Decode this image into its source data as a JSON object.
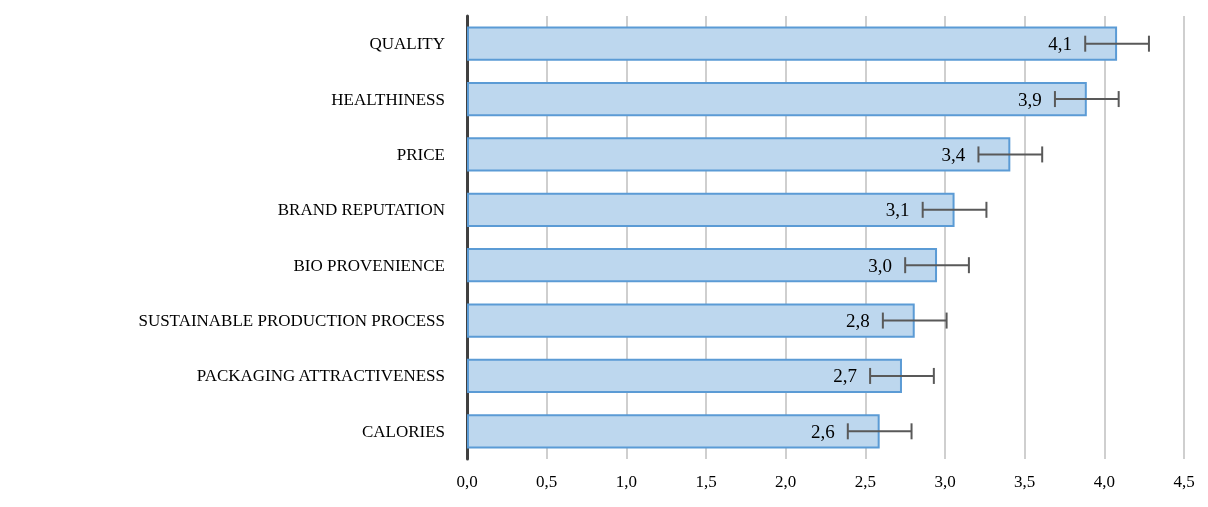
{
  "chart_data": {
    "type": "bar",
    "orientation": "horizontal",
    "categories": [
      "QUALITY",
      "HEALTHINESS",
      "PRICE",
      "BRAND REPUTATION",
      "BIO PROVENIENCE",
      "SUSTAINABLE PRODUCTION PROCESS",
      "PACKAGING ATTRACTIVENESS",
      "CALORIES"
    ],
    "values": [
      4.08,
      3.89,
      3.41,
      3.06,
      2.95,
      2.81,
      2.73,
      2.59
    ],
    "value_labels": [
      "4,1",
      "3,9",
      "3,4",
      "3,1",
      "3,0",
      "2,8",
      "2,7",
      "2,6"
    ],
    "errors": [
      0.2,
      0.2,
      0.2,
      0.2,
      0.2,
      0.2,
      0.2,
      0.2
    ],
    "color": "#bdd7ee",
    "xlim": [
      0,
      4.5
    ],
    "xticks": [
      {
        "value": 0,
        "label": "0,0"
      },
      {
        "value": 0.5,
        "label": "0,5"
      },
      {
        "value": 1,
        "label": "1,0"
      },
      {
        "value": 1.5,
        "label": "1,5"
      },
      {
        "value": 2,
        "label": "2,0"
      },
      {
        "value": 2.5,
        "label": "2,5"
      },
      {
        "value": 3,
        "label": "3,0"
      },
      {
        "value": 3.5,
        "label": "3,5"
      },
      {
        "value": 4,
        "label": "4,0"
      },
      {
        "value": 4.5,
        "label": "4,5"
      }
    ],
    "grid": "x"
  }
}
